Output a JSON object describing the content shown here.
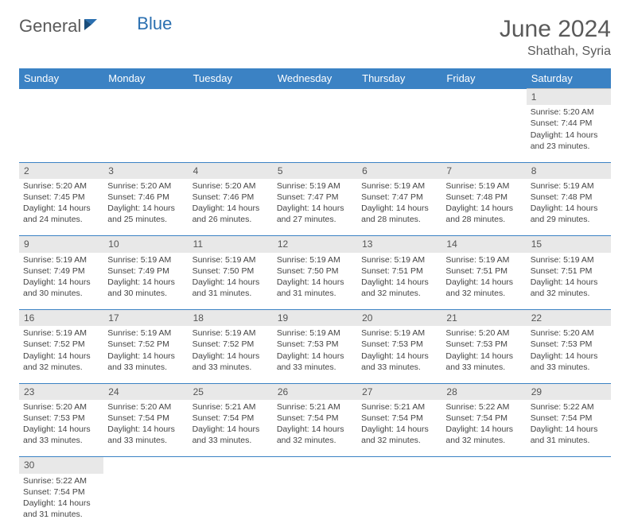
{
  "logo": {
    "general": "General",
    "blue": "Blue"
  },
  "title": "June 2024",
  "location": "Shathah, Syria",
  "colors": {
    "header_bg": "#3b82c4",
    "header_text": "#ffffff",
    "daynum_bg": "#e8e8e8",
    "border": "#3b82c4",
    "logo_blue": "#2a6fb0"
  },
  "weekdays": [
    "Sunday",
    "Monday",
    "Tuesday",
    "Wednesday",
    "Thursday",
    "Friday",
    "Saturday"
  ],
  "weeks": [
    {
      "nums": [
        "",
        "",
        "",
        "",
        "",
        "",
        "1"
      ],
      "cells": [
        null,
        null,
        null,
        null,
        null,
        null,
        {
          "sunrise": "Sunrise: 5:20 AM",
          "sunset": "Sunset: 7:44 PM",
          "daylight1": "Daylight: 14 hours",
          "daylight2": "and 23 minutes."
        }
      ]
    },
    {
      "nums": [
        "2",
        "3",
        "4",
        "5",
        "6",
        "7",
        "8"
      ],
      "cells": [
        {
          "sunrise": "Sunrise: 5:20 AM",
          "sunset": "Sunset: 7:45 PM",
          "daylight1": "Daylight: 14 hours",
          "daylight2": "and 24 minutes."
        },
        {
          "sunrise": "Sunrise: 5:20 AM",
          "sunset": "Sunset: 7:46 PM",
          "daylight1": "Daylight: 14 hours",
          "daylight2": "and 25 minutes."
        },
        {
          "sunrise": "Sunrise: 5:20 AM",
          "sunset": "Sunset: 7:46 PM",
          "daylight1": "Daylight: 14 hours",
          "daylight2": "and 26 minutes."
        },
        {
          "sunrise": "Sunrise: 5:19 AM",
          "sunset": "Sunset: 7:47 PM",
          "daylight1": "Daylight: 14 hours",
          "daylight2": "and 27 minutes."
        },
        {
          "sunrise": "Sunrise: 5:19 AM",
          "sunset": "Sunset: 7:47 PM",
          "daylight1": "Daylight: 14 hours",
          "daylight2": "and 28 minutes."
        },
        {
          "sunrise": "Sunrise: 5:19 AM",
          "sunset": "Sunset: 7:48 PM",
          "daylight1": "Daylight: 14 hours",
          "daylight2": "and 28 minutes."
        },
        {
          "sunrise": "Sunrise: 5:19 AM",
          "sunset": "Sunset: 7:48 PM",
          "daylight1": "Daylight: 14 hours",
          "daylight2": "and 29 minutes."
        }
      ]
    },
    {
      "nums": [
        "9",
        "10",
        "11",
        "12",
        "13",
        "14",
        "15"
      ],
      "cells": [
        {
          "sunrise": "Sunrise: 5:19 AM",
          "sunset": "Sunset: 7:49 PM",
          "daylight1": "Daylight: 14 hours",
          "daylight2": "and 30 minutes."
        },
        {
          "sunrise": "Sunrise: 5:19 AM",
          "sunset": "Sunset: 7:49 PM",
          "daylight1": "Daylight: 14 hours",
          "daylight2": "and 30 minutes."
        },
        {
          "sunrise": "Sunrise: 5:19 AM",
          "sunset": "Sunset: 7:50 PM",
          "daylight1": "Daylight: 14 hours",
          "daylight2": "and 31 minutes."
        },
        {
          "sunrise": "Sunrise: 5:19 AM",
          "sunset": "Sunset: 7:50 PM",
          "daylight1": "Daylight: 14 hours",
          "daylight2": "and 31 minutes."
        },
        {
          "sunrise": "Sunrise: 5:19 AM",
          "sunset": "Sunset: 7:51 PM",
          "daylight1": "Daylight: 14 hours",
          "daylight2": "and 32 minutes."
        },
        {
          "sunrise": "Sunrise: 5:19 AM",
          "sunset": "Sunset: 7:51 PM",
          "daylight1": "Daylight: 14 hours",
          "daylight2": "and 32 minutes."
        },
        {
          "sunrise": "Sunrise: 5:19 AM",
          "sunset": "Sunset: 7:51 PM",
          "daylight1": "Daylight: 14 hours",
          "daylight2": "and 32 minutes."
        }
      ]
    },
    {
      "nums": [
        "16",
        "17",
        "18",
        "19",
        "20",
        "21",
        "22"
      ],
      "cells": [
        {
          "sunrise": "Sunrise: 5:19 AM",
          "sunset": "Sunset: 7:52 PM",
          "daylight1": "Daylight: 14 hours",
          "daylight2": "and 32 minutes."
        },
        {
          "sunrise": "Sunrise: 5:19 AM",
          "sunset": "Sunset: 7:52 PM",
          "daylight1": "Daylight: 14 hours",
          "daylight2": "and 33 minutes."
        },
        {
          "sunrise": "Sunrise: 5:19 AM",
          "sunset": "Sunset: 7:52 PM",
          "daylight1": "Daylight: 14 hours",
          "daylight2": "and 33 minutes."
        },
        {
          "sunrise": "Sunrise: 5:19 AM",
          "sunset": "Sunset: 7:53 PM",
          "daylight1": "Daylight: 14 hours",
          "daylight2": "and 33 minutes."
        },
        {
          "sunrise": "Sunrise: 5:19 AM",
          "sunset": "Sunset: 7:53 PM",
          "daylight1": "Daylight: 14 hours",
          "daylight2": "and 33 minutes."
        },
        {
          "sunrise": "Sunrise: 5:20 AM",
          "sunset": "Sunset: 7:53 PM",
          "daylight1": "Daylight: 14 hours",
          "daylight2": "and 33 minutes."
        },
        {
          "sunrise": "Sunrise: 5:20 AM",
          "sunset": "Sunset: 7:53 PM",
          "daylight1": "Daylight: 14 hours",
          "daylight2": "and 33 minutes."
        }
      ]
    },
    {
      "nums": [
        "23",
        "24",
        "25",
        "26",
        "27",
        "28",
        "29"
      ],
      "cells": [
        {
          "sunrise": "Sunrise: 5:20 AM",
          "sunset": "Sunset: 7:53 PM",
          "daylight1": "Daylight: 14 hours",
          "daylight2": "and 33 minutes."
        },
        {
          "sunrise": "Sunrise: 5:20 AM",
          "sunset": "Sunset: 7:54 PM",
          "daylight1": "Daylight: 14 hours",
          "daylight2": "and 33 minutes."
        },
        {
          "sunrise": "Sunrise: 5:21 AM",
          "sunset": "Sunset: 7:54 PM",
          "daylight1": "Daylight: 14 hours",
          "daylight2": "and 33 minutes."
        },
        {
          "sunrise": "Sunrise: 5:21 AM",
          "sunset": "Sunset: 7:54 PM",
          "daylight1": "Daylight: 14 hours",
          "daylight2": "and 32 minutes."
        },
        {
          "sunrise": "Sunrise: 5:21 AM",
          "sunset": "Sunset: 7:54 PM",
          "daylight1": "Daylight: 14 hours",
          "daylight2": "and 32 minutes."
        },
        {
          "sunrise": "Sunrise: 5:22 AM",
          "sunset": "Sunset: 7:54 PM",
          "daylight1": "Daylight: 14 hours",
          "daylight2": "and 32 minutes."
        },
        {
          "sunrise": "Sunrise: 5:22 AM",
          "sunset": "Sunset: 7:54 PM",
          "daylight1": "Daylight: 14 hours",
          "daylight2": "and 31 minutes."
        }
      ]
    },
    {
      "nums": [
        "30",
        "",
        "",
        "",
        "",
        "",
        ""
      ],
      "cells": [
        {
          "sunrise": "Sunrise: 5:22 AM",
          "sunset": "Sunset: 7:54 PM",
          "daylight1": "Daylight: 14 hours",
          "daylight2": "and 31 minutes."
        },
        null,
        null,
        null,
        null,
        null,
        null
      ],
      "last": true
    }
  ]
}
